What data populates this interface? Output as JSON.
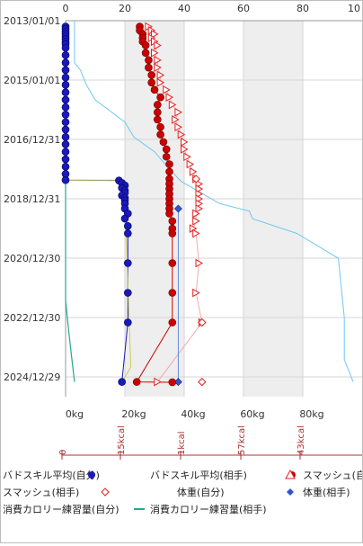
{
  "chart_data": {
    "type": "scatter",
    "orientation": "horizontal-values-vertical-time",
    "top_axis": {
      "ticks": [
        "0",
        "20",
        "40",
        "60",
        "80",
        "10"
      ],
      "range": [
        0,
        100
      ]
    },
    "bottom_axis": {
      "ticks": [
        "0kg",
        "20kg",
        "40kg",
        "60kg",
        "80kg"
      ],
      "range": [
        0,
        100
      ]
    },
    "date_ticks": [
      "2013/01/01",
      "2015/01/01",
      "2016/12/31",
      "2018/12/31",
      "2020/12/30",
      "2022/12/30",
      "2024/12/29"
    ],
    "calorie_ticks": [
      "0",
      "15kcal",
      "1kcal",
      "57kcal",
      "43kcal"
    ],
    "shaded_bands": [
      [
        20,
        40
      ],
      [
        60,
        80
      ]
    ],
    "grid": true,
    "colors": {
      "self_skill": "#1a1ab8",
      "opp_skill": "#cc0000",
      "smash_self": "#e62020",
      "smash_opp": "#e62020",
      "weight": "#6ec8f0",
      "cal_self": "#cccc55",
      "cal_opp": "#22aa88",
      "axis_red": "#b03030"
    },
    "series": [
      {
        "name": "バドスキル平均(自分)",
        "marker": "circle-blue",
        "points": [
          [
            "2013/03/15",
            0
          ],
          [
            "2013/04/15",
            0
          ],
          [
            "2013/05/15",
            0
          ],
          [
            "2013/06/15",
            0
          ],
          [
            "2013/07/15",
            0
          ],
          [
            "2013/08/15",
            0
          ],
          [
            "2013/09/15",
            0
          ],
          [
            "2013/10/15",
            0
          ],
          [
            "2013/12/01",
            0
          ],
          [
            "2014/03/01",
            0
          ],
          [
            "2014/06/01",
            0
          ],
          [
            "2014/09/01",
            0
          ],
          [
            "2014/12/01",
            0
          ],
          [
            "2015/03/01",
            0
          ],
          [
            "2015/06/01",
            0
          ],
          [
            "2015/09/01",
            0
          ],
          [
            "2015/12/01",
            0
          ],
          [
            "2016/03/01",
            0
          ],
          [
            "2016/06/01",
            0
          ],
          [
            "2016/09/01",
            0
          ],
          [
            "2016/12/01",
            0
          ],
          [
            "2017/03/01",
            0
          ],
          [
            "2017/06/01",
            0
          ],
          [
            "2017/09/01",
            0
          ],
          [
            "2017/12/01",
            0
          ],
          [
            "2018/03/01",
            0
          ],
          [
            "2018/05/15",
            0
          ],
          [
            "2018/05/20",
            18
          ],
          [
            "2018/06/20",
            19
          ],
          [
            "2018/07/20",
            20
          ],
          [
            "2018/08/20",
            19
          ],
          [
            "2018/09/20",
            20
          ],
          [
            "2018/10/20",
            20
          ],
          [
            "2018/11/20",
            19
          ],
          [
            "2018/12/20",
            20
          ],
          [
            "2019/01/20",
            20
          ],
          [
            "2019/03/01",
            20
          ],
          [
            "2019/05/01",
            20
          ],
          [
            "2019/07/01",
            21
          ],
          [
            "2019/09/01",
            20
          ],
          [
            "2019/12/01",
            21
          ],
          [
            "2020/03/01",
            21
          ],
          [
            "2021/03/01",
            21
          ],
          [
            "2022/03/01",
            21
          ],
          [
            "2023/03/01",
            21
          ],
          [
            "2025/03/01",
            19
          ]
        ]
      },
      {
        "name": "バドスキル平均(相手)",
        "marker": "circle-red",
        "points": [
          [
            "2013/03/15",
            25
          ],
          [
            "2013/05/01",
            25
          ],
          [
            "2013/06/15",
            26
          ],
          [
            "2013/08/01",
            26
          ],
          [
            "2013/09/15",
            26
          ],
          [
            "2013/11/01",
            27
          ],
          [
            "2014/02/01",
            27
          ],
          [
            "2014/05/01",
            28
          ],
          [
            "2014/08/01",
            28
          ],
          [
            "2014/11/01",
            29
          ],
          [
            "2015/02/01",
            29
          ],
          [
            "2015/05/01",
            30
          ],
          [
            "2015/08/01",
            32
          ],
          [
            "2015/11/01",
            31
          ],
          [
            "2016/02/01",
            31
          ],
          [
            "2016/05/01",
            31
          ],
          [
            "2016/08/01",
            32
          ],
          [
            "2016/11/01",
            32
          ],
          [
            "2017/02/01",
            33
          ],
          [
            "2017/05/01",
            34
          ],
          [
            "2017/08/01",
            34
          ],
          [
            "2017/11/01",
            35
          ],
          [
            "2018/02/01",
            35
          ],
          [
            "2018/05/01",
            35
          ],
          [
            "2018/07/01",
            35
          ],
          [
            "2018/09/01",
            35
          ],
          [
            "2018/11/01",
            35
          ],
          [
            "2019/01/01",
            35
          ],
          [
            "2019/03/01",
            35
          ],
          [
            "2019/05/01",
            35
          ],
          [
            "2019/07/01",
            35
          ],
          [
            "2019/10/01",
            36
          ],
          [
            "2020/01/01",
            36
          ],
          [
            "2020/03/01",
            36
          ],
          [
            "2021/03/01",
            36
          ],
          [
            "2022/03/01",
            36
          ],
          [
            "2023/03/01",
            36
          ],
          [
            "2025/03/01",
            24
          ],
          [
            "2025/03/05",
            36
          ]
        ]
      },
      {
        "name": "スマッシュ(自分)",
        "marker": "triangle-up-red",
        "points": [
          [
            "2013/03/15",
            28
          ],
          [
            "2013/05/01",
            29
          ],
          [
            "2013/06/15",
            30
          ],
          [
            "2013/08/01",
            29
          ],
          [
            "2013/09/15",
            30
          ],
          [
            "2013/11/01",
            31
          ],
          [
            "2014/02/01",
            30
          ],
          [
            "2014/05/01",
            31
          ],
          [
            "2014/08/01",
            31
          ],
          [
            "2014/11/01",
            32
          ],
          [
            "2015/02/01",
            32
          ],
          [
            "2015/05/01",
            34
          ],
          [
            "2015/08/01",
            35
          ],
          [
            "2015/11/01",
            36
          ],
          [
            "2016/02/01",
            38
          ],
          [
            "2016/05/01",
            37
          ],
          [
            "2016/08/01",
            38
          ],
          [
            "2016/11/01",
            39
          ],
          [
            "2017/02/01",
            40
          ],
          [
            "2017/05/01",
            40
          ],
          [
            "2017/08/01",
            41
          ],
          [
            "2017/11/01",
            42
          ],
          [
            "2018/02/01",
            43
          ],
          [
            "2018/05/01",
            44
          ],
          [
            "2018/07/01",
            45
          ],
          [
            "2018/09/01",
            45
          ],
          [
            "2018/11/01",
            45
          ],
          [
            "2019/01/01",
            45
          ],
          [
            "2019/03/01",
            45
          ],
          [
            "2019/05/01",
            45
          ],
          [
            "2019/07/01",
            44
          ],
          [
            "2019/10/01",
            44
          ],
          [
            "2020/01/01",
            43
          ],
          [
            "2020/03/01",
            44
          ],
          [
            "2021/03/01",
            45
          ],
          [
            "2022/03/01",
            44
          ],
          [
            "2023/03/01",
            46
          ],
          [
            "2025/03/01",
            31
          ]
        ]
      },
      {
        "name": "スマッシュ(相手)",
        "marker": "diamond-outline-red",
        "points": [
          [
            "2018/05/01",
            44
          ],
          [
            "2023/03/01",
            46
          ],
          [
            "2025/03/01",
            46
          ]
        ]
      },
      {
        "name": "体重(自分)",
        "marker": "line-lightblue",
        "points": [
          [
            "2013/01/01",
            3
          ],
          [
            "2014/06/01",
            3
          ],
          [
            "2014/09/01",
            5
          ],
          [
            "2015/03/01",
            7
          ],
          [
            "2015/09/01",
            10
          ],
          [
            "2016/06/01",
            20
          ],
          [
            "2016/12/01",
            23
          ],
          [
            "2017/06/01",
            30
          ],
          [
            "2018/01/01",
            35
          ],
          [
            "2018/06/01",
            39
          ],
          [
            "2019/03/01",
            52
          ],
          [
            "2019/06/01",
            62
          ],
          [
            "2019/09/01",
            63
          ],
          [
            "2020/03/01",
            78
          ],
          [
            "2021/01/01",
            92
          ],
          [
            "2022/01/01",
            93
          ],
          [
            "2023/01/01",
            94
          ],
          [
            "2024/06/01",
            94
          ],
          [
            "2025/03/01",
            97
          ]
        ]
      },
      {
        "name": "体重(相手)",
        "marker": "diamond-blue",
        "points": [
          [
            "2019/05/01",
            38
          ],
          [
            "2025/03/01",
            38
          ]
        ]
      },
      {
        "name": "消費カロリー練習量(自分)",
        "marker": "line-olive",
        "points": [
          [
            "2018/05/15",
            0
          ],
          [
            "2018/05/15",
            18
          ],
          [
            "2019/01/01",
            20
          ],
          [
            "2024/09/01",
            22
          ],
          [
            "2025/03/01",
            19
          ]
        ]
      },
      {
        "name": "消費カロリー練習量(相手)",
        "marker": "line-teal",
        "points": [
          [
            "2018/06/01",
            0
          ],
          [
            "2022/06/01",
            0
          ],
          [
            "2023/06/01",
            1
          ],
          [
            "2025/03/01",
            3
          ]
        ]
      }
    ]
  },
  "legend": {
    "rows": [
      [
        {
          "label": "バドスキル平均(自分)",
          "icon": "circle-blue"
        },
        {
          "label": "バドスキル平均(相手)",
          "icon": "circle-red"
        },
        {
          "label": "スマッシュ(自",
          "icon": "triangle-up-red"
        }
      ],
      [
        {
          "label": "スマッシュ(相手)",
          "icon": "diamond-outline-red"
        },
        {
          "label": "体重(自分)",
          "icon": "diamond-blue"
        },
        {
          "label": "体重(相手)",
          "icon": ""
        }
      ],
      [
        {
          "label": "消費カロリー練習量(自分)",
          "icon": "line-teal"
        },
        {
          "label": "消費カロリー練習量(相手)",
          "icon": ""
        },
        {
          "label": "",
          "icon": ""
        }
      ]
    ]
  }
}
